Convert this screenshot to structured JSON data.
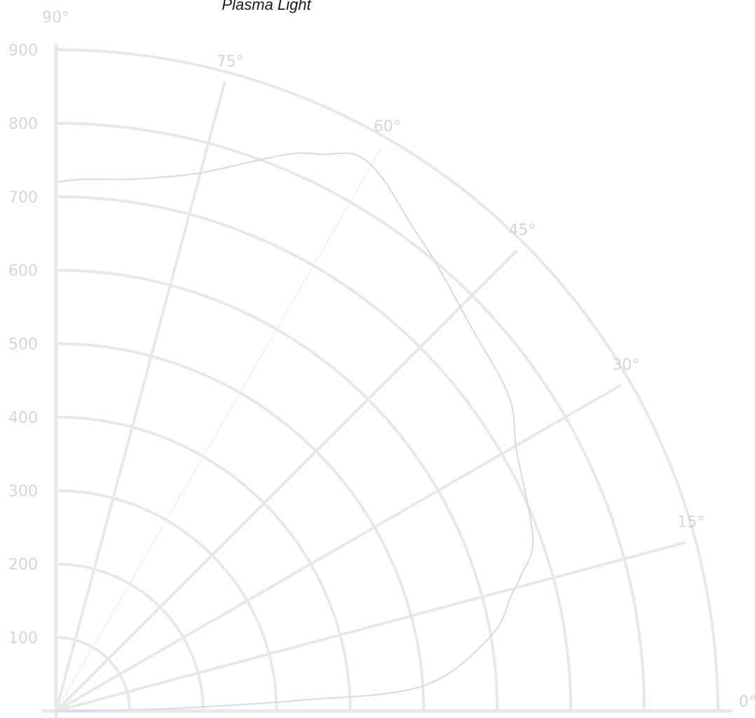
{
  "chart_data": {
    "type": "line",
    "coordinate_system": "polar",
    "title": "Plasma Light",
    "angle_range_deg": [
      0,
      90
    ],
    "angle_ticks": [
      "0°",
      "15°",
      "30°",
      "45°",
      "60°",
      "75°",
      "90°"
    ],
    "radial_range": [
      0,
      900
    ],
    "radial_ticks": [
      "100",
      "200",
      "300",
      "400",
      "500",
      "600",
      "700",
      "800",
      "900"
    ],
    "grid": true,
    "colors": {
      "grid": "#e8e8e8",
      "line": "#d8d8e8",
      "text": "#d6d6d6"
    },
    "series": [
      {
        "theta_deg": [
          0,
          0.5,
          1,
          1.3,
          2.5,
          3.9,
          9.8,
          14.4,
          16.4,
          20.0,
          29.6,
          34.8,
          43.0,
          49.9,
          54.0,
          58.5,
          61.6,
          64.4,
          67.5,
          74.7,
          79.0,
          82.4,
          86.8,
          90
        ],
        "r": [
          0,
          60,
          110,
          170,
          330,
          500,
          600,
          640,
          660,
          690,
          720,
          750,
          770,
          800,
          820,
          850,
          860,
          840,
          820,
          760,
          740,
          730,
          725,
          720
        ]
      }
    ]
  }
}
